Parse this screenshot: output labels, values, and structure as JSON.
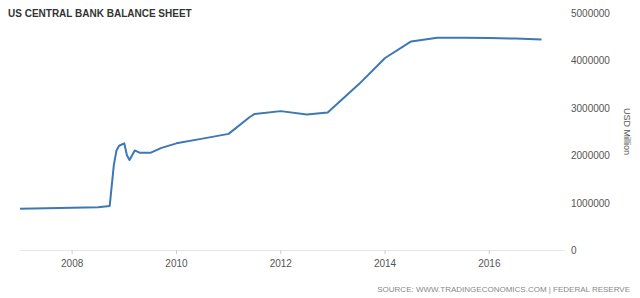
{
  "chart_data": {
    "type": "line",
    "title": "US CENTRAL BANK BALANCE SHEET",
    "y_label": "USD Million",
    "source": "SOURCE: WWW.TRADINGECONOMICS.COM | FEDERAL RESERVE",
    "x": [
      2007.0,
      2007.5,
      2008.0,
      2008.5,
      2008.72,
      2008.8,
      2008.85,
      2008.9,
      2009.0,
      2009.05,
      2009.1,
      2009.2,
      2009.3,
      2009.5,
      2009.7,
      2010.0,
      2010.5,
      2011.0,
      2011.4,
      2011.5,
      2012.0,
      2012.5,
      2012.9,
      2013.0,
      2013.5,
      2014.0,
      2014.5,
      2015.0,
      2015.5,
      2016.0,
      2016.5,
      2017.0
    ],
    "values": [
      870000,
      880000,
      890000,
      900000,
      930000,
      1800000,
      2100000,
      2200000,
      2250000,
      2000000,
      1900000,
      2100000,
      2050000,
      2050000,
      2150000,
      2250000,
      2350000,
      2450000,
      2800000,
      2870000,
      2930000,
      2860000,
      2900000,
      3000000,
      3500000,
      4050000,
      4400000,
      4480000,
      4480000,
      4470000,
      4460000,
      4440000
    ],
    "color": "#3c78b4",
    "xlim": [
      2007.0,
      2017.45
    ],
    "xticks": [
      2008,
      2010,
      2012,
      2014,
      2016
    ],
    "ylim": [
      0,
      5000000
    ],
    "yticks": [
      0,
      1000000,
      2000000,
      3000000,
      4000000,
      5000000
    ],
    "grid": false
  }
}
